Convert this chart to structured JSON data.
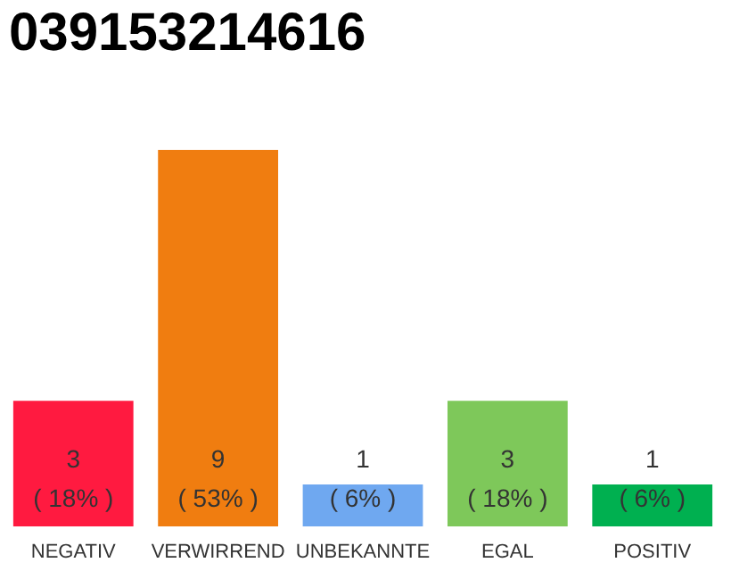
{
  "chart_data": {
    "type": "bar",
    "title": "039153214616",
    "categories": [
      "NEGATIV",
      "VERWIRREND",
      "UNBEKANNTE",
      "EGAL",
      "POSITIV"
    ],
    "values": [
      3,
      9,
      1,
      3,
      1
    ],
    "colors": [
      "#ff1a40",
      "#f07d10",
      "#6fa8f0",
      "#7ec85a",
      "#00b050"
    ],
    "value_labels": [
      "3\n( 18% )",
      "9\n( 53% )",
      "1\n( 6% )",
      "3\n( 18% )",
      "1\n( 6% )"
    ],
    "grid": false,
    "legend": false
  }
}
